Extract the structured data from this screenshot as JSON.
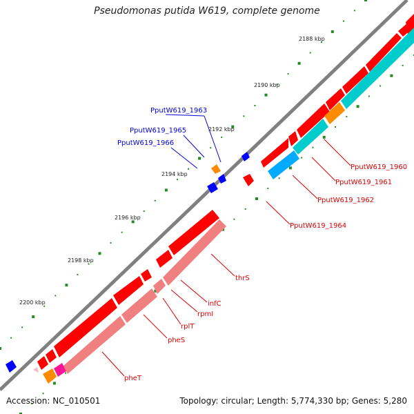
{
  "header": {
    "title": "Pseudomonas putida W619, complete genome"
  },
  "footer": {
    "accession": "Accession: NC_010501",
    "summary": "Topology: circular; Length: 5,774,330 bp; Genes: 5,280"
  },
  "ticks": [
    "2188 kbp",
    "2190 kbp",
    "2192 kbp",
    "2194 kbp",
    "2196 kbp",
    "2198 kbp",
    "2200 kbp"
  ],
  "labels": [
    {
      "text": "PputW619_1963",
      "color": "#0000dd"
    },
    {
      "text": "PputW619_1965",
      "color": "#0000dd"
    },
    {
      "text": "PputW619_1966",
      "color": "#0000dd"
    },
    {
      "text": "PputW619_1960",
      "color": "#dd0000"
    },
    {
      "text": "PputW619_1961",
      "color": "#dd0000"
    },
    {
      "text": "PputW619_1962",
      "color": "#dd0000"
    },
    {
      "text": "PputW619_1964",
      "color": "#dd0000"
    },
    {
      "text": "thrS",
      "color": "#dd0000"
    },
    {
      "text": "infC",
      "color": "#dd0000"
    },
    {
      "text": "rpmI",
      "color": "#dd0000"
    },
    {
      "text": "rplT",
      "color": "#dd0000"
    },
    {
      "text": "pheS",
      "color": "#dd0000"
    },
    {
      "text": "pheT",
      "color": "#dd0000"
    }
  ],
  "colors": {
    "backbone": "#808080",
    "cds_forward": "#ff0000",
    "cds_reverse_faded": "#f08080",
    "rna": "#00cccc",
    "gene_orange": "#ff8c00",
    "gene_blue": "#0000ff",
    "gene_lightblue": "#00aaff",
    "gene_magenta": "#ff1493",
    "gene_pink": "#ffb6c1",
    "dots": "#228b22"
  }
}
